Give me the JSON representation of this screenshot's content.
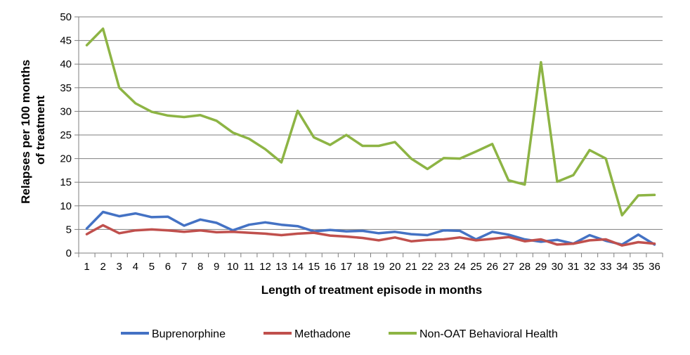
{
  "chart_data": {
    "type": "line",
    "xlabel": "Length of treatment episode in months",
    "ylabel_lines": [
      "Relapses per 100 months",
      "of treatment"
    ],
    "ylim": [
      0,
      50
    ],
    "yticks": [
      0,
      5,
      10,
      15,
      20,
      25,
      30,
      35,
      40,
      45,
      50
    ],
    "grid": "horizontal",
    "legend_position": "bottom",
    "categories": [
      "1",
      "2",
      "3",
      "4",
      "5",
      "6",
      "7",
      "8",
      "9",
      "10",
      "11",
      "12",
      "13",
      "14",
      "15",
      "16",
      "17",
      "18",
      "19",
      "20",
      "21",
      "22",
      "23",
      "24",
      "25",
      "26",
      "27",
      "28",
      "29",
      "30",
      "31",
      "32",
      "33",
      "34",
      "35",
      "36"
    ],
    "series": [
      {
        "name": "Buprenorphine",
        "color": "#4472c4",
        "values": [
          5.2,
          8.7,
          7.8,
          8.4,
          7.6,
          7.7,
          5.8,
          7.1,
          6.4,
          4.8,
          6.0,
          6.5,
          6.0,
          5.7,
          4.6,
          4.9,
          4.6,
          4.7,
          4.2,
          4.5,
          4.0,
          3.8,
          4.8,
          4.7,
          2.9,
          4.5,
          3.9,
          2.9,
          2.4,
          2.8,
          2.0,
          3.8,
          2.6,
          1.8,
          3.9,
          1.8
        ]
      },
      {
        "name": "Methadone",
        "color": "#c0504d",
        "values": [
          4.0,
          5.9,
          4.2,
          4.8,
          5.0,
          4.8,
          4.5,
          4.8,
          4.4,
          4.5,
          4.3,
          4.1,
          3.8,
          4.1,
          4.3,
          3.7,
          3.5,
          3.2,
          2.7,
          3.3,
          2.5,
          2.8,
          2.9,
          3.3,
          2.7,
          3.0,
          3.4,
          2.5,
          2.9,
          1.8,
          2.0,
          2.7,
          2.9,
          1.6,
          2.3,
          2.0
        ]
      },
      {
        "name": "Non-OAT Behavioral Health",
        "color": "#8db444",
        "values": [
          44.0,
          47.5,
          35.0,
          31.7,
          29.9,
          29.1,
          28.8,
          29.2,
          28.0,
          25.5,
          24.2,
          22.0,
          19.2,
          30.1,
          24.5,
          22.9,
          25.0,
          22.7,
          22.7,
          23.5,
          20.0,
          17.8,
          20.1,
          20.0,
          21.5,
          23.1,
          15.4,
          14.5,
          40.4,
          15.1,
          16.5,
          21.8,
          20.0,
          8.0,
          12.2,
          12.3
        ]
      }
    ]
  }
}
